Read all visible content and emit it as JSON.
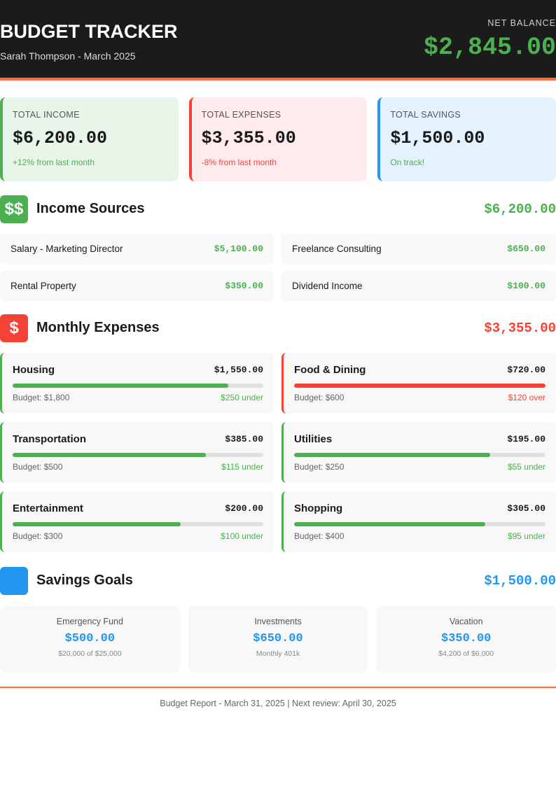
{
  "header": {
    "title": "BUDGET TRACKER",
    "subtitle": "Sarah Thompson - March 2025",
    "net_balance_label": "NET BALANCE",
    "net_balance_value": "$2,845.00"
  },
  "summary": [
    {
      "label": "TOTAL INCOME",
      "value": "$6,200.00",
      "note": "+12% from last month",
      "bg": "#e8f5e9",
      "accent": "#4caf50",
      "note_color": "#4caf50"
    },
    {
      "label": "TOTAL EXPENSES",
      "value": "$3,355.00",
      "note": "-8% from last month",
      "bg": "#ffebee",
      "accent": "#f44336",
      "note_color": "#f44336"
    },
    {
      "label": "TOTAL SAVINGS",
      "value": "$1,500.00",
      "note": "On track!",
      "bg": "#e3f2fd",
      "accent": "#2196f3",
      "note_color": "#4caf50"
    }
  ],
  "income": {
    "icon": "$$",
    "title": "Income Sources",
    "total": "$6,200.00",
    "items": [
      {
        "name": "Salary - Marketing Director",
        "amount": "$5,100.00"
      },
      {
        "name": "Freelance Consulting",
        "amount": "$650.00"
      },
      {
        "name": "Rental Property",
        "amount": "$350.00"
      },
      {
        "name": "Dividend Income",
        "amount": "$100.00"
      }
    ]
  },
  "expenses": {
    "icon": "$",
    "title": "Monthly Expenses",
    "total": "$3,355.00",
    "items": [
      {
        "category": "Housing",
        "amount": "$1,550.00",
        "budget": "Budget: $1,800",
        "status": "$250 under",
        "percent": 86,
        "over": false
      },
      {
        "category": "Food & Dining",
        "amount": "$720.00",
        "budget": "Budget: $600",
        "status": "$120 over",
        "percent": 100,
        "over": true
      },
      {
        "category": "Transportation",
        "amount": "$385.00",
        "budget": "Budget: $500",
        "status": "$115 under",
        "percent": 77,
        "over": false
      },
      {
        "category": "Utilities",
        "amount": "$195.00",
        "budget": "Budget: $250",
        "status": "$55 under",
        "percent": 78,
        "over": false
      },
      {
        "category": "Entertainment",
        "amount": "$200.00",
        "budget": "Budget: $300",
        "status": "$100 under",
        "percent": 67,
        "over": false
      },
      {
        "category": "Shopping",
        "amount": "$305.00",
        "budget": "Budget: $400",
        "status": "$95 under",
        "percent": 76,
        "over": false
      }
    ]
  },
  "savings": {
    "icon": "",
    "title": "Savings Goals",
    "total": "$1,500.00",
    "goals": [
      {
        "name": "Emergency Fund",
        "amount": "$500.00",
        "detail": "$20,000 of $25,000"
      },
      {
        "name": "Investments",
        "amount": "$650.00",
        "detail": "Monthly 401k"
      },
      {
        "name": "Vacation",
        "amount": "$350.00",
        "detail": "$4,200 of $6,000"
      }
    ]
  },
  "footer": {
    "text": "Budget Report - March 31, 2025 | Next review: April 30, 2025"
  },
  "colors": {
    "green": "#4caf50",
    "red": "#f44336",
    "blue": "#2196f3",
    "orange": "#ff6b35",
    "header_bg": "#1b1b1b"
  }
}
